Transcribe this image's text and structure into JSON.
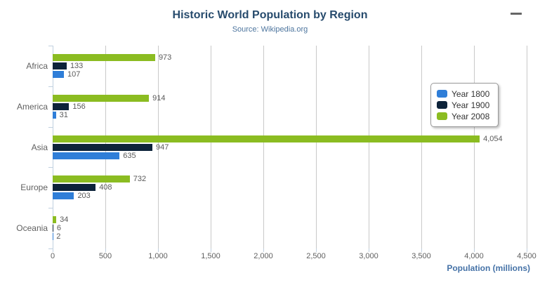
{
  "title": "Historic World Population by Region",
  "subtitle": "Source: Wikipedia.org",
  "icons": {
    "menu": "hamburger-icon"
  },
  "colors": {
    "title": "#274b6d",
    "subtitle": "#4d759e",
    "axis_title": "#4572a7",
    "tick_label": "#606060",
    "data_label": "#5a5a5a",
    "grid_line": "#c9c9c9",
    "axis_line": "#c0d0e0",
    "legend_border": "#999999",
    "menu_icon": "#666666"
  },
  "chart_data": {
    "type": "bar",
    "orientation": "horizontal",
    "title": "Historic World Population by Region",
    "subtitle": "Source: Wikipedia.org",
    "categories": [
      "Africa",
      "America",
      "Asia",
      "Europe",
      "Oceania"
    ],
    "series": [
      {
        "name": "Year 1800",
        "color": "#2f7ed8",
        "values": [
          107,
          31,
          635,
          203,
          2
        ]
      },
      {
        "name": "Year 1900",
        "color": "#0d233a",
        "values": [
          133,
          156,
          947,
          408,
          6
        ]
      },
      {
        "name": "Year 2008",
        "color": "#8bbc21",
        "values": [
          973,
          914,
          4054,
          732,
          34
        ]
      }
    ],
    "bar_order_top_to_bottom": [
      "Year 2008",
      "Year 1900",
      "Year 1800"
    ],
    "data_labels_visible": true,
    "xlabel": "Population (millions)",
    "ylabel": "",
    "xlim": [
      0,
      4500
    ],
    "x_ticks": [
      0,
      500,
      1000,
      1500,
      2000,
      2500,
      3000,
      3500,
      4000,
      4500
    ],
    "grid": true,
    "legend_position": "right"
  }
}
